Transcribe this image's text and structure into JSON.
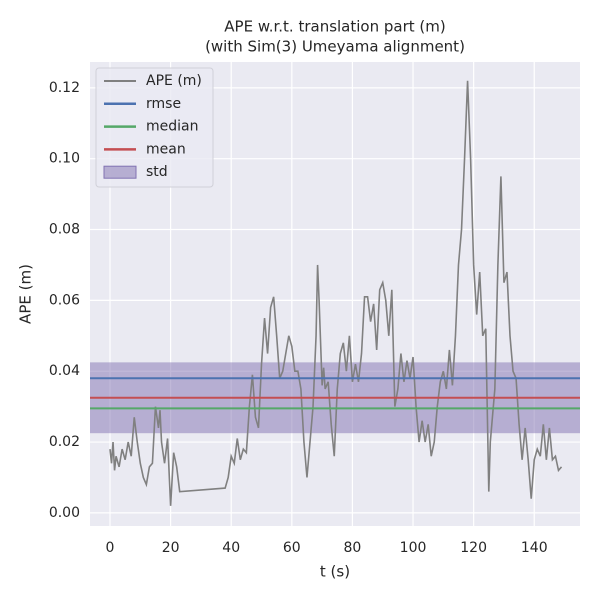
{
  "chart_data": {
    "type": "line",
    "title": [
      "APE w.r.t. translation part (m)",
      "(with Sim(3) Umeyama alignment)"
    ],
    "xlabel": "t (s)",
    "ylabel": "APE (m)",
    "xlim": [
      -6.6,
      155.1
    ],
    "ylim": [
      -0.0037,
      0.1273
    ],
    "xticks": [
      0,
      20,
      40,
      60,
      80,
      100,
      120,
      140
    ],
    "yticks": [
      {
        "value": 0,
        "label": "0.00"
      },
      {
        "value": 0.02,
        "label": "0.02"
      },
      {
        "value": 0.04,
        "label": "0.04"
      },
      {
        "value": 0.06,
        "label": "0.06"
      },
      {
        "value": 0.08,
        "label": "0.08"
      },
      {
        "value": 0.1,
        "label": "0.10"
      },
      {
        "value": 0.12,
        "label": "0.12"
      }
    ],
    "grid": true,
    "legend": "upper left",
    "x": [
      0,
      0.5,
      1,
      1.5,
      2,
      3,
      4,
      5,
      6,
      7,
      8,
      9,
      10,
      11,
      12,
      13,
      14,
      15,
      16,
      16.5,
      17,
      18,
      19,
      20,
      21,
      22,
      23,
      38,
      39,
      40,
      41,
      42,
      43,
      44,
      45,
      46,
      47,
      48,
      49,
      50,
      51,
      52,
      53,
      54,
      55,
      56,
      57,
      58,
      59,
      60,
      61,
      62,
      63,
      64,
      65,
      66,
      67,
      68,
      68.5,
      69,
      70,
      70.5,
      71,
      72,
      73,
      74,
      75,
      76,
      77,
      78,
      79,
      80,
      81,
      82,
      83,
      84,
      85,
      86,
      87,
      88,
      89,
      90,
      91,
      92,
      93,
      94,
      95,
      96,
      97,
      98,
      99,
      100,
      101,
      102,
      103,
      104,
      105,
      106,
      107,
      108,
      109,
      110,
      111,
      112,
      113,
      114,
      115,
      116,
      117,
      118,
      119,
      120,
      121,
      122,
      123,
      124,
      125,
      125.5,
      126,
      127,
      128,
      129,
      130,
      131,
      132,
      133,
      134,
      135,
      136,
      137,
      138,
      139,
      140,
      141,
      142,
      143,
      144,
      145,
      146,
      147,
      148,
      149
    ],
    "series": [
      {
        "name": "APE (m)",
        "color": "#808080",
        "values": [
          0.018,
          0.014,
          0.02,
          0.012,
          0.016,
          0.013,
          0.018,
          0.015,
          0.02,
          0.016,
          0.027,
          0.02,
          0.014,
          0.01,
          0.008,
          0.013,
          0.014,
          0.03,
          0.024,
          0.029,
          0.02,
          0.014,
          0.021,
          0.002,
          0.017,
          0.013,
          0.006,
          0.007,
          0.01,
          0.016,
          0.014,
          0.021,
          0.015,
          0.018,
          0.017,
          0.03,
          0.039,
          0.027,
          0.024,
          0.042,
          0.055,
          0.045,
          0.058,
          0.061,
          0.05,
          0.038,
          0.04,
          0.045,
          0.05,
          0.047,
          0.04,
          0.04,
          0.035,
          0.02,
          0.01,
          0.02,
          0.03,
          0.05,
          0.07,
          0.06,
          0.036,
          0.041,
          0.035,
          0.037,
          0.025,
          0.016,
          0.035,
          0.045,
          0.048,
          0.04,
          0.05,
          0.037,
          0.042,
          0.037,
          0.045,
          0.061,
          0.061,
          0.054,
          0.059,
          0.046,
          0.063,
          0.065,
          0.06,
          0.05,
          0.063,
          0.03,
          0.035,
          0.045,
          0.037,
          0.043,
          0.038,
          0.044,
          0.03,
          0.02,
          0.026,
          0.02,
          0.025,
          0.016,
          0.02,
          0.03,
          0.037,
          0.04,
          0.035,
          0.046,
          0.036,
          0.05,
          0.07,
          0.08,
          0.1,
          0.122,
          0.1,
          0.07,
          0.056,
          0.068,
          0.05,
          0.052,
          0.006,
          0.02,
          0.025,
          0.035,
          0.07,
          0.095,
          0.065,
          0.068,
          0.05,
          0.04,
          0.038,
          0.025,
          0.015,
          0.024,
          0.015,
          0.004,
          0.015,
          0.018,
          0.016,
          0.025,
          0.015,
          0.024,
          0.015,
          0.016,
          0.012,
          0.013
        ]
      }
    ],
    "stats": [
      {
        "name": "rmse",
        "color": "#4c72b0",
        "value": 0.038
      },
      {
        "name": "median",
        "color": "#55a868",
        "value": 0.0295
      },
      {
        "name": "mean",
        "color": "#c44e52",
        "value": 0.0325
      }
    ],
    "std": {
      "name": "std",
      "color": "#8172b2",
      "value": 0.01
    }
  }
}
